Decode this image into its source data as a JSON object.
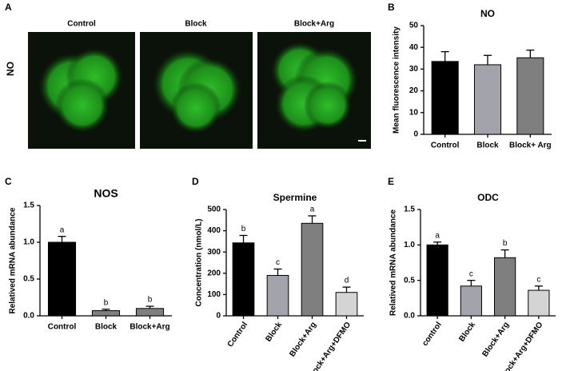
{
  "image_panel": {
    "panel_label": "A",
    "row_label": "NO",
    "columns": [
      "Control",
      "Block",
      "Block+Arg"
    ]
  },
  "chart_data": [
    {
      "type": "bar",
      "panel_label": "B",
      "title": "NO",
      "y_label": "Mean fluorescence intensity",
      "categories": [
        "Control",
        "Block",
        "Block+ Arg"
      ],
      "values": [
        33.5,
        32,
        35.2
      ],
      "errors": [
        4.5,
        4.3,
        3.5
      ],
      "colors": [
        "#000000",
        "#a3a3ab",
        "#7f7f7f"
      ],
      "ylim": [
        0,
        50
      ],
      "yticks": [
        0,
        10,
        20,
        30,
        40,
        50
      ]
    },
    {
      "type": "bar",
      "panel_label": "C",
      "title": "NOS",
      "y_label": "Relatived mRNA abundance",
      "categories": [
        "Control",
        "Block",
        "Block+Arg"
      ],
      "values": [
        1.0,
        0.07,
        0.1
      ],
      "errors": [
        0.08,
        0.02,
        0.03
      ],
      "letters": [
        "a",
        "b",
        "b"
      ],
      "colors": [
        "#000000",
        "#7f7f7f",
        "#7f7f7f"
      ],
      "ylim": [
        0,
        1.5
      ],
      "yticks": [
        {
          "value": 0,
          "label": "0.0"
        },
        0.5,
        {
          "value": 1,
          "label": "1.0"
        },
        1.5
      ]
    },
    {
      "type": "bar",
      "panel_label": "D",
      "title": "Spermine",
      "y_label": "Concentration (nmol/L)",
      "categories": [
        "Control",
        "Block",
        "Block+Arg",
        "Block+Arg+DFMO"
      ],
      "values": [
        343,
        190,
        435,
        110
      ],
      "errors": [
        35,
        30,
        35,
        25
      ],
      "letters": [
        "b",
        "c",
        "a",
        "d"
      ],
      "colors": [
        "#000000",
        "#a3a3ab",
        "#7f7f7f",
        "#d4d4d4"
      ],
      "ylim": [
        0,
        500
      ],
      "yticks": [
        0,
        100,
        200,
        300,
        400,
        500
      ]
    },
    {
      "type": "bar",
      "panel_label": "E",
      "title": "ODC",
      "y_label": "Relatived mRNA abundance",
      "categories": [
        "control",
        "Block",
        "Block+Arg",
        "Block+Arg+DFMO"
      ],
      "values": [
        1.0,
        0.42,
        0.82,
        0.36
      ],
      "errors": [
        0.04,
        0.08,
        0.11,
        0.06
      ],
      "letters": [
        "a",
        "c",
        "b",
        "c"
      ],
      "colors": [
        "#000000",
        "#a3a3ab",
        "#7f7f7f",
        "#d4d4d4"
      ],
      "ylim": [
        0,
        1.5
      ],
      "yticks": [
        {
          "value": 0,
          "label": "0.0"
        },
        0.5,
        {
          "value": 1,
          "label": "1.0"
        },
        1.5
      ]
    }
  ]
}
